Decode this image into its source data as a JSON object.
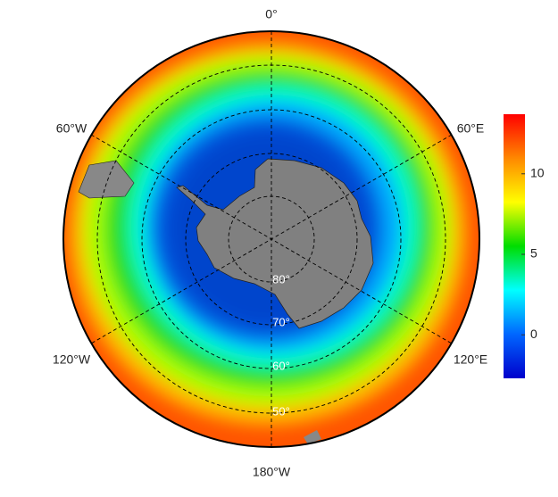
{
  "map": {
    "lon_labels": [
      "0°",
      "60°E",
      "120°E",
      "180°W",
      "120°W",
      "60°W"
    ],
    "lat_labels": [
      "80°",
      "70°",
      "60°",
      "50°"
    ]
  },
  "colorbar": {
    "range": [
      -2.7,
      13.7
    ],
    "ticks": [
      0,
      5,
      10
    ],
    "colors": [
      "#0000cc",
      "#0066ff",
      "#00ffff",
      "#00dd00",
      "#ffff00",
      "#ff8800",
      "#ff0000"
    ]
  }
}
